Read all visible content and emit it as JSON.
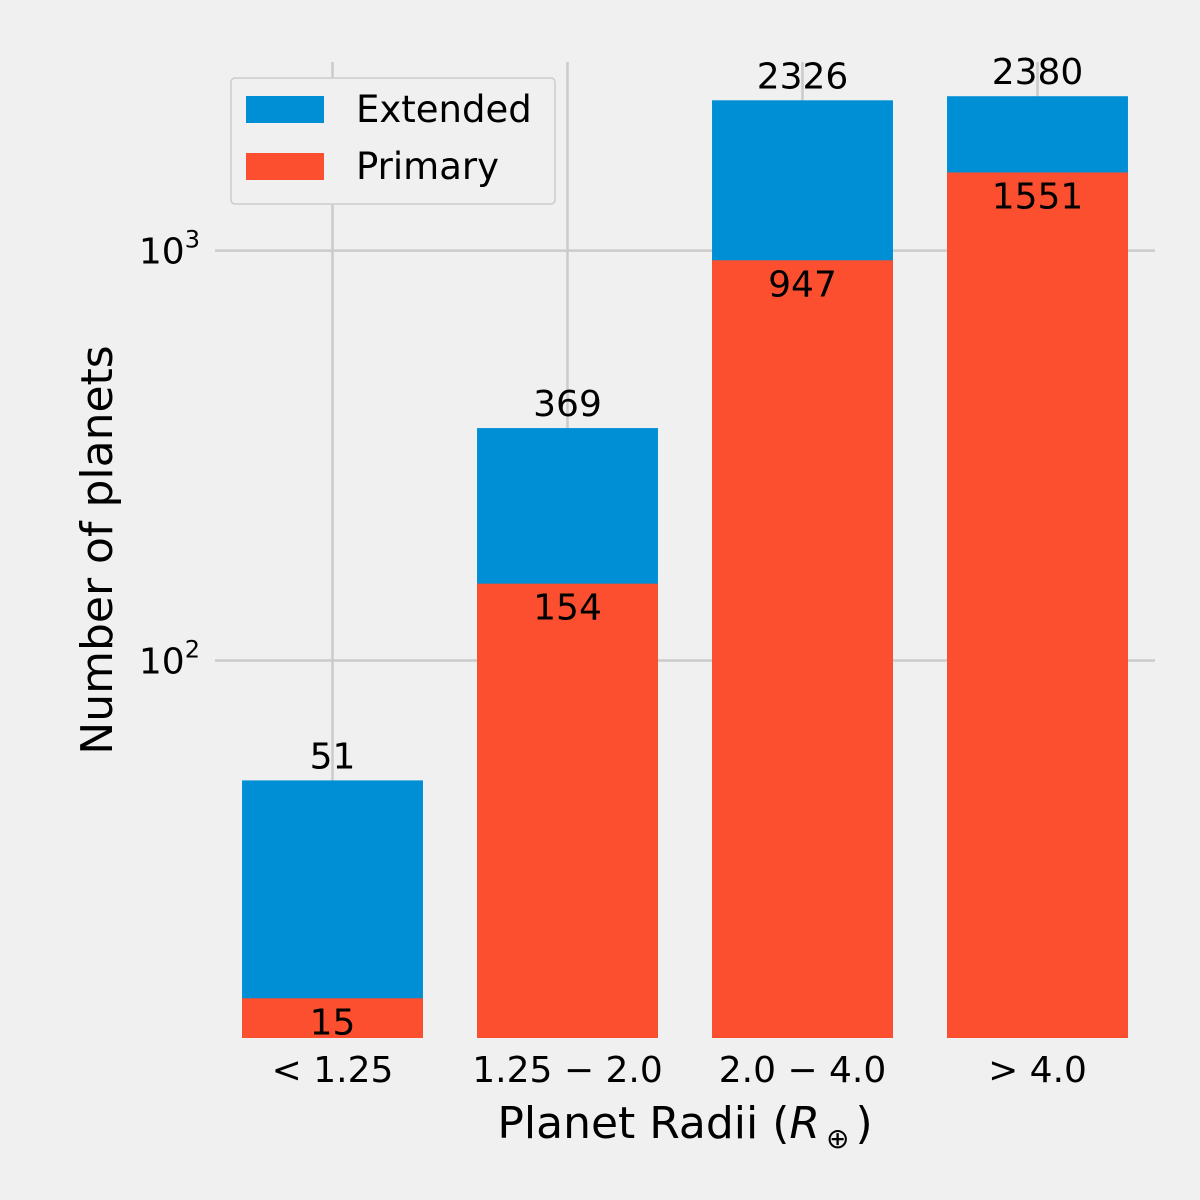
{
  "chart_data": {
    "type": "bar",
    "stacked": true,
    "categories": [
      "< 1.25",
      "1.25 − 2.0",
      "2.0 − 4.0",
      "> 4.0"
    ],
    "series": [
      {
        "name": "Primary",
        "values": [
          15,
          154,
          947,
          1551
        ]
      },
      {
        "name": "Extended",
        "values": [
          51,
          369,
          2326,
          2380
        ]
      }
    ],
    "yscale": "log",
    "ylim": [
      12,
      3000
    ],
    "yticks": [
      {
        "value": 100,
        "base": "10",
        "exp": "2"
      },
      {
        "value": 1000,
        "base": "10",
        "exp": "3"
      }
    ],
    "xlabel_main": "Planet Radii (",
    "xlabel_symbol": "R",
    "xlabel_sub": "⊕",
    "xlabel_end": ")",
    "ylabel": "Number of planets",
    "grid": true,
    "legend_position": "top-left",
    "colors": {
      "primary": "#fc4f30",
      "extended": "#008fd5",
      "background": "#f0f0f0",
      "grid": "#cbcbcb"
    }
  }
}
